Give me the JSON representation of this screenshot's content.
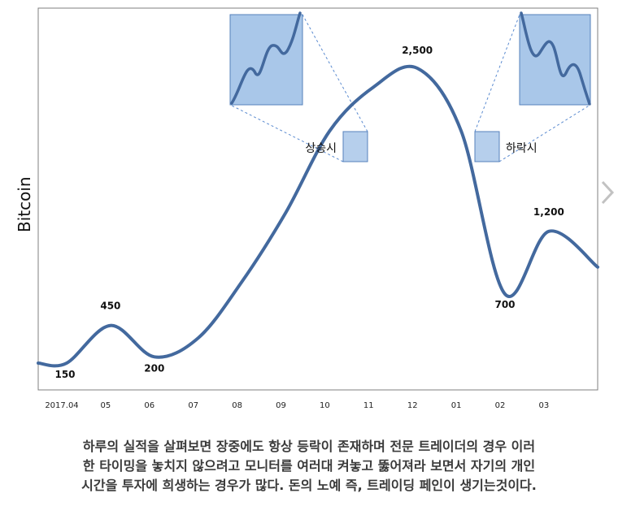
{
  "chart_data": {
    "type": "line",
    "ylabel": "Bitcoin",
    "categories": [
      "2017.04",
      "05",
      "06",
      "07",
      "08",
      "09",
      "10",
      "11",
      "12",
      "01",
      "02",
      "03"
    ],
    "series": [
      {
        "values": [
          150,
          450,
          200,
          350,
          800,
          1350,
          2000,
          2350,
          2500,
          2000,
          700,
          1200
        ]
      }
    ],
    "point_labels": [
      {
        "category": "2017.04",
        "value": 150,
        "label": "150"
      },
      {
        "category": "05",
        "value": 450,
        "label": "450"
      },
      {
        "category": "06",
        "value": 200,
        "label": "200"
      },
      {
        "category": "12",
        "value": 2500,
        "label": "2,500"
      },
      {
        "category": "02",
        "value": 700,
        "label": "700"
      },
      {
        "category": "03",
        "value": 1200,
        "label": "1,200"
      }
    ],
    "annotations": [
      {
        "label": "상승시",
        "category": "10",
        "trend": "rising"
      },
      {
        "label": "하락시",
        "category": "01",
        "trend": "falling"
      }
    ],
    "colors": {
      "line": "#43699e",
      "zoom_fill": "#a9c7e9",
      "zoom_border": "#5581bb",
      "connector": "#5b8bd0",
      "frame": "#7f7f7f"
    }
  },
  "caption": {
    "lines": [
      "하루의 실적을 살펴보면 장중에도 항상 등락이 존재하며 전문 트레이더의 경우 이러",
      "한 타이밍을 놓치지 않으려고 모니터를 여러대 켜놓고 뚫어져라 보면서 자기의 개인",
      "시간을 투자에 희생하는 경우가 많다. 돈의 노예 즉, 트레이딩 페인이 생기는것이다."
    ]
  },
  "nav": {
    "next_icon": "chevron-right-icon"
  }
}
